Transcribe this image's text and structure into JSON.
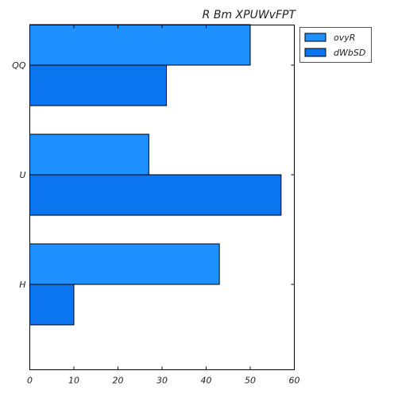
{
  "chart_data": {
    "type": "bar",
    "orientation": "horizontal",
    "title": "R Bm XPUWvFPT",
    "categories": [
      "QQ",
      "U",
      "H"
    ],
    "series": [
      {
        "name": "ovyR",
        "values": [
          50,
          27,
          43
        ],
        "color": "#1e90ff"
      },
      {
        "name": "dWbSD",
        "values": [
          31,
          57,
          10
        ],
        "color": "#0b75f0"
      }
    ],
    "xlim": [
      0,
      60
    ],
    "xticks": [
      "0",
      "10",
      "20",
      "30",
      "40",
      "50",
      "60"
    ],
    "grid": false,
    "legend_position": "top-right outside"
  }
}
